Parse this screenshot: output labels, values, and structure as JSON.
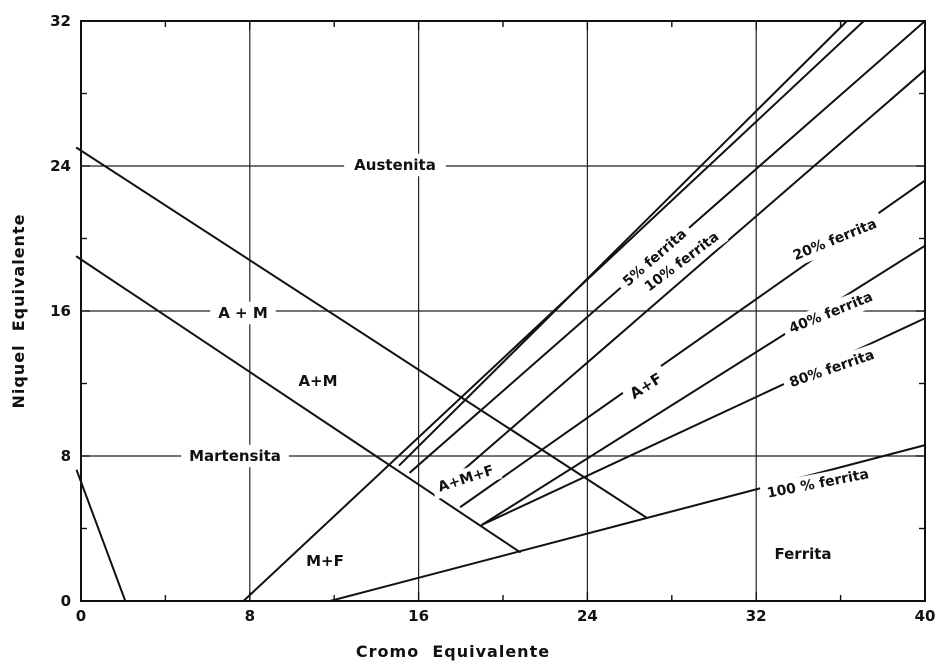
{
  "chart_data": {
    "type": "line",
    "title": "",
    "xlabel": "Cromo  Equivalente",
    "ylabel": "Niquel  Equivalente",
    "xlim": [
      0,
      40
    ],
    "ylim": [
      0,
      32
    ],
    "xticks": [
      0,
      8,
      16,
      24,
      32,
      40
    ],
    "yticks": [
      0,
      8,
      16,
      24,
      32
    ],
    "x_tick_labels": [
      "0",
      "8",
      "16",
      "24",
      "32",
      "40"
    ],
    "y_tick_labels": [
      "0",
      "8",
      "16",
      "24",
      "32"
    ],
    "grid": true,
    "boundaries": [
      {
        "id": "ms_limit",
        "points": [
          [
            -0.2,
            7.2
          ],
          [
            2.1,
            0
          ]
        ]
      },
      {
        "id": "austenite_martensite_upper",
        "points": [
          [
            -0.2,
            25.0
          ],
          [
            26.8,
            4.6
          ]
        ]
      },
      {
        "id": "austenite_martensite_lower",
        "points": [
          [
            -0.2,
            19.0
          ],
          [
            20.8,
            2.7
          ]
        ]
      },
      {
        "id": "mf_boundary",
        "points": [
          [
            7.7,
            0
          ],
          [
            37.1,
            32
          ]
        ]
      },
      {
        "id": "ferrite_5",
        "name": "5% ferrita",
        "points": [
          [
            15.1,
            7.5
          ],
          [
            36.3,
            32
          ]
        ]
      },
      {
        "id": "ferrite_10",
        "name": "10% ferrita",
        "points": [
          [
            15.6,
            7.1
          ],
          [
            40.0,
            32
          ]
        ]
      },
      {
        "id": "ferrite_20",
        "name": "20% ferrita",
        "points": [
          [
            17.2,
            6.3
          ],
          [
            40.0,
            29.3
          ]
        ]
      },
      {
        "id": "ferrite_40",
        "name": "40% ferrita",
        "points": [
          [
            18.0,
            5.2
          ],
          [
            40.0,
            23.2
          ]
        ]
      },
      {
        "id": "ferrite_80",
        "name": "80% ferrita",
        "points": [
          [
            19.0,
            4.2
          ],
          [
            40.0,
            19.6
          ]
        ]
      },
      {
        "id": "ferrite_100",
        "name": "100 % ferrita",
        "points": [
          [
            11.8,
            0
          ],
          [
            40.0,
            8.6
          ]
        ]
      },
      {
        "id": "ferrite_80b",
        "points": [
          [
            19.0,
            4.2
          ],
          [
            40.0,
            15.6
          ]
        ]
      }
    ],
    "regions": [
      "Austenita",
      "A + M",
      "A+M",
      "Martensita",
      "A+F",
      "A+M+F",
      "M+F",
      "Ferrita"
    ]
  }
}
